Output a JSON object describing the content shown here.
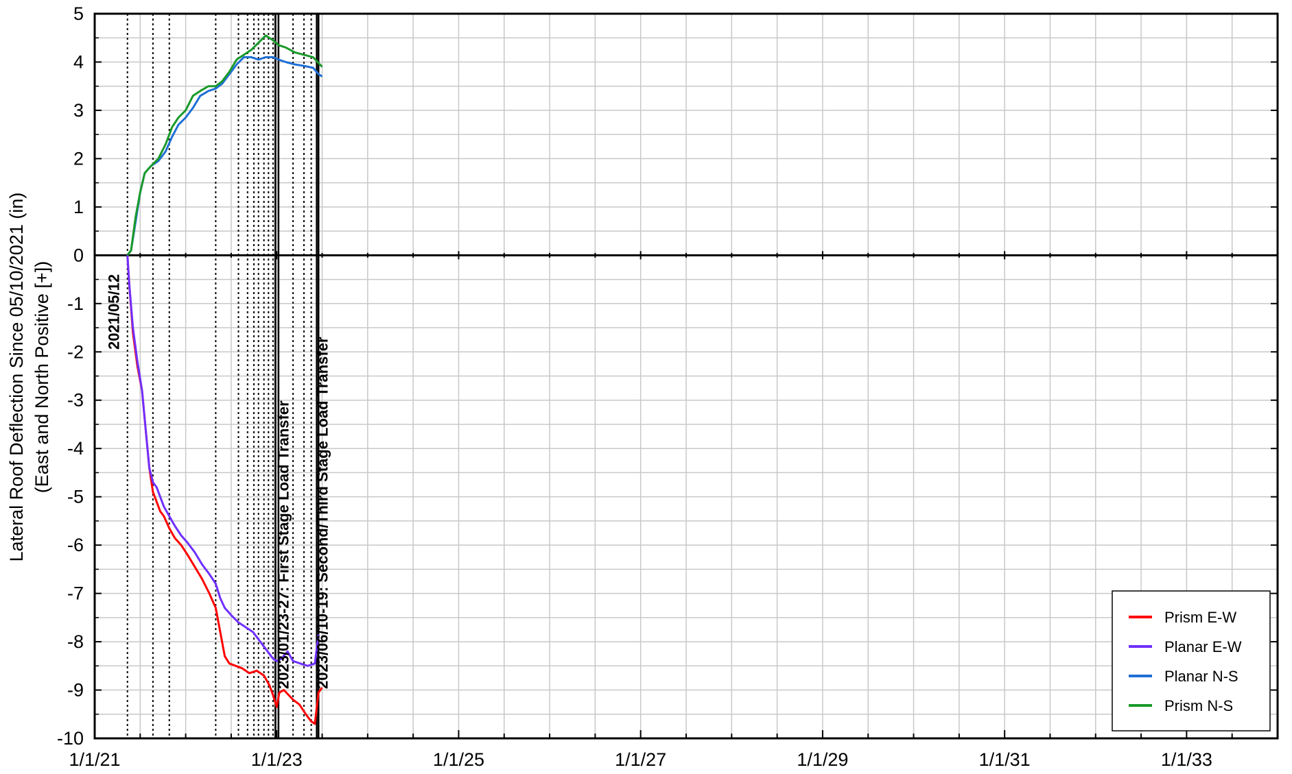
{
  "chart_data": {
    "type": "line",
    "ylabel_line1": "Lateral Roof Deflection Since 05/10/2021 (in)",
    "ylabel_line2": "(East and North Positive [+])",
    "xlabel": "",
    "x_ticks": [
      {
        "label": "1/1/21",
        "year": 2021.0
      },
      {
        "label": "1/1/23",
        "year": 2023.0
      },
      {
        "label": "1/1/25",
        "year": 2025.0
      },
      {
        "label": "1/1/27",
        "year": 2027.0
      },
      {
        "label": "1/1/29",
        "year": 2029.0
      },
      {
        "label": "1/1/31",
        "year": 2031.0
      },
      {
        "label": "1/1/33",
        "year": 2033.0
      }
    ],
    "xlim": [
      2021.0,
      2034.0
    ],
    "ylim": [
      -10,
      5
    ],
    "y_ticks": [
      5,
      4,
      3,
      2,
      1,
      0,
      -1,
      -2,
      -3,
      -4,
      -5,
      -6,
      -7,
      -8,
      -9,
      -10
    ],
    "grid": true,
    "legend_position": "bottom-right",
    "event_lines_dotted": [
      2021.36,
      2021.64,
      2021.82,
      2022.33,
      2022.58,
      2022.68,
      2022.75,
      2022.8,
      2022.86,
      2022.91,
      2022.96,
      2023.18,
      2023.3,
      2023.38
    ],
    "event_lines_solid": [
      2022.985,
      2023.02,
      2023.44,
      2023.46
    ],
    "annotations": [
      {
        "text": "2021/05/12",
        "year": 2021.36
      },
      {
        "text": "2023/01/23-27: First Stage Load Transfer",
        "year": 2023.07
      },
      {
        "text": "2023/06/10-19: Second/Third Stage Load Transfer",
        "year": 2023.5
      }
    ],
    "series": [
      {
        "name": "Prism E-W",
        "color": "#ff0000",
        "points": [
          [
            2021.36,
            0
          ],
          [
            2021.38,
            -0.6
          ],
          [
            2021.42,
            -1.6
          ],
          [
            2021.47,
            -2.3
          ],
          [
            2021.52,
            -2.8
          ],
          [
            2021.57,
            -3.8
          ],
          [
            2021.6,
            -4.4
          ],
          [
            2021.64,
            -4.9
          ],
          [
            2021.68,
            -5.1
          ],
          [
            2021.72,
            -5.3
          ],
          [
            2021.76,
            -5.4
          ],
          [
            2021.82,
            -5.65
          ],
          [
            2021.88,
            -5.85
          ],
          [
            2021.95,
            -6.0
          ],
          [
            2022.02,
            -6.2
          ],
          [
            2022.1,
            -6.45
          ],
          [
            2022.18,
            -6.7
          ],
          [
            2022.26,
            -7.0
          ],
          [
            2022.33,
            -7.3
          ],
          [
            2022.38,
            -7.8
          ],
          [
            2022.43,
            -8.3
          ],
          [
            2022.48,
            -8.45
          ],
          [
            2022.55,
            -8.5
          ],
          [
            2022.62,
            -8.55
          ],
          [
            2022.7,
            -8.65
          ],
          [
            2022.78,
            -8.6
          ],
          [
            2022.86,
            -8.7
          ],
          [
            2022.92,
            -8.9
          ],
          [
            2022.96,
            -9.1
          ],
          [
            2023.0,
            -9.35
          ],
          [
            2023.03,
            -9.05
          ],
          [
            2023.08,
            -9.0
          ],
          [
            2023.13,
            -9.1
          ],
          [
            2023.18,
            -9.2
          ],
          [
            2023.25,
            -9.3
          ],
          [
            2023.32,
            -9.5
          ],
          [
            2023.38,
            -9.65
          ],
          [
            2023.42,
            -9.7
          ],
          [
            2023.46,
            -9.05
          ],
          [
            2023.5,
            -8.95
          ]
        ]
      },
      {
        "name": "Planar E-W",
        "color": "#7030ff",
        "points": [
          [
            2021.36,
            0
          ],
          [
            2021.38,
            -0.6
          ],
          [
            2021.42,
            -1.5
          ],
          [
            2021.47,
            -2.2
          ],
          [
            2021.52,
            -2.8
          ],
          [
            2021.57,
            -3.8
          ],
          [
            2021.6,
            -4.4
          ],
          [
            2021.64,
            -4.7
          ],
          [
            2021.68,
            -4.8
          ],
          [
            2021.72,
            -5.0
          ],
          [
            2021.76,
            -5.2
          ],
          [
            2021.82,
            -5.4
          ],
          [
            2021.88,
            -5.6
          ],
          [
            2021.95,
            -5.8
          ],
          [
            2022.02,
            -5.95
          ],
          [
            2022.1,
            -6.15
          ],
          [
            2022.18,
            -6.4
          ],
          [
            2022.26,
            -6.6
          ],
          [
            2022.33,
            -6.8
          ],
          [
            2022.38,
            -7.1
          ],
          [
            2022.43,
            -7.3
          ],
          [
            2022.5,
            -7.45
          ],
          [
            2022.58,
            -7.6
          ],
          [
            2022.66,
            -7.7
          ],
          [
            2022.74,
            -7.8
          ],
          [
            2022.82,
            -8.0
          ],
          [
            2022.9,
            -8.2
          ],
          [
            2022.96,
            -8.35
          ],
          [
            2023.0,
            -8.4
          ],
          [
            2023.05,
            -8.35
          ],
          [
            2023.12,
            -8.2
          ],
          [
            2023.18,
            -8.4
          ],
          [
            2023.26,
            -8.45
          ],
          [
            2023.34,
            -8.5
          ],
          [
            2023.42,
            -8.45
          ],
          [
            2023.46,
            -7.85
          ]
        ]
      },
      {
        "name": "Planar N-S",
        "color": "#1f6fd6",
        "points": [
          [
            2021.36,
            0
          ],
          [
            2021.4,
            0.1
          ],
          [
            2021.45,
            0.7
          ],
          [
            2021.5,
            1.3
          ],
          [
            2021.55,
            1.7
          ],
          [
            2021.62,
            1.85
          ],
          [
            2021.7,
            1.95
          ],
          [
            2021.78,
            2.15
          ],
          [
            2021.85,
            2.45
          ],
          [
            2021.92,
            2.7
          ],
          [
            2022.0,
            2.85
          ],
          [
            2022.08,
            3.05
          ],
          [
            2022.16,
            3.3
          ],
          [
            2022.25,
            3.4
          ],
          [
            2022.33,
            3.45
          ],
          [
            2022.4,
            3.55
          ],
          [
            2022.48,
            3.75
          ],
          [
            2022.56,
            3.95
          ],
          [
            2022.64,
            4.1
          ],
          [
            2022.72,
            4.1
          ],
          [
            2022.8,
            4.05
          ],
          [
            2022.88,
            4.1
          ],
          [
            2022.96,
            4.1
          ],
          [
            2023.02,
            4.05
          ],
          [
            2023.1,
            4.0
          ],
          [
            2023.2,
            3.95
          ],
          [
            2023.3,
            3.92
          ],
          [
            2023.4,
            3.88
          ],
          [
            2023.46,
            3.75
          ],
          [
            2023.5,
            3.7
          ]
        ]
      },
      {
        "name": "Prism N-S",
        "color": "#1a9a2a",
        "points": [
          [
            2021.36,
            0
          ],
          [
            2021.4,
            0.1
          ],
          [
            2021.45,
            0.8
          ],
          [
            2021.5,
            1.3
          ],
          [
            2021.55,
            1.7
          ],
          [
            2021.62,
            1.85
          ],
          [
            2021.7,
            2.0
          ],
          [
            2021.78,
            2.3
          ],
          [
            2021.85,
            2.65
          ],
          [
            2021.92,
            2.85
          ],
          [
            2022.0,
            3.0
          ],
          [
            2022.08,
            3.3
          ],
          [
            2022.16,
            3.4
          ],
          [
            2022.25,
            3.5
          ],
          [
            2022.33,
            3.5
          ],
          [
            2022.4,
            3.6
          ],
          [
            2022.48,
            3.8
          ],
          [
            2022.56,
            4.05
          ],
          [
            2022.64,
            4.15
          ],
          [
            2022.72,
            4.25
          ],
          [
            2022.8,
            4.4
          ],
          [
            2022.88,
            4.55
          ],
          [
            2022.96,
            4.45
          ],
          [
            2023.02,
            4.35
          ],
          [
            2023.1,
            4.3
          ],
          [
            2023.2,
            4.2
          ],
          [
            2023.3,
            4.15
          ],
          [
            2023.4,
            4.1
          ],
          [
            2023.46,
            3.98
          ],
          [
            2023.5,
            3.9
          ]
        ]
      }
    ]
  }
}
